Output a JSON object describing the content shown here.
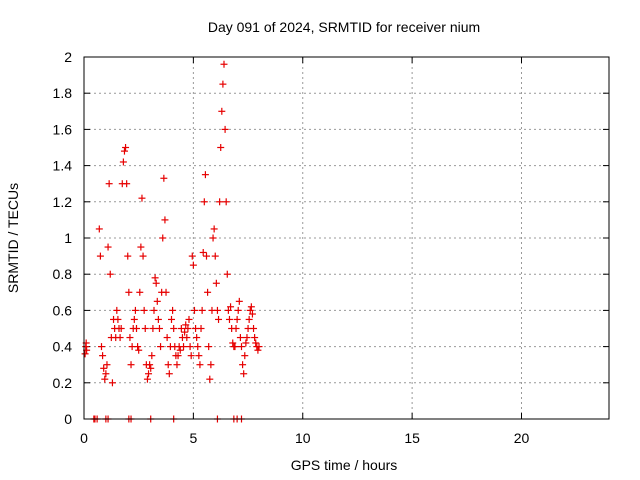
{
  "chart_data": {
    "type": "scatter",
    "title": "Day 091 of 2024, SRMTID for receiver nium",
    "xlabel": "GPS time / hours",
    "ylabel": "SRMTID / TECUs",
    "xlim": [
      0,
      24
    ],
    "ylim": [
      0,
      2
    ],
    "x_ticks": [
      0,
      5,
      10,
      15,
      20
    ],
    "y_ticks": [
      0,
      0.2,
      0.4,
      0.6,
      0.8,
      1,
      1.2,
      1.4,
      1.6,
      1.8,
      2
    ],
    "x_tick_labels": [
      "0",
      "5",
      "10",
      "15",
      "20"
    ],
    "y_tick_labels": [
      "0",
      "0.2",
      "0.4",
      "0.6",
      "0.8",
      "1",
      "1.2",
      "1.4",
      "1.6",
      "1.8",
      "2"
    ],
    "grid": true,
    "marker": "+",
    "color": "#e60000",
    "series": [
      {
        "name": "SRMTID",
        "x": [
          0.05,
          0.08,
          0.1,
          0.12,
          0.7,
          0.75,
          0.8,
          0.85,
          0.9,
          0.95,
          1.0,
          1.05,
          1.1,
          1.15,
          1.2,
          1.25,
          1.3,
          1.35,
          1.4,
          1.45,
          1.5,
          1.55,
          1.6,
          1.65,
          1.7,
          1.75,
          1.8,
          1.85,
          1.9,
          1.95,
          2.0,
          2.05,
          2.1,
          2.15,
          2.2,
          2.25,
          2.3,
          2.35,
          2.4,
          2.45,
          2.5,
          2.55,
          2.6,
          2.65,
          2.7,
          2.75,
          2.8,
          2.85,
          2.9,
          2.95,
          3.0,
          3.05,
          3.1,
          3.15,
          3.2,
          3.25,
          3.3,
          3.35,
          3.4,
          3.45,
          3.5,
          3.55,
          3.6,
          3.65,
          3.7,
          3.75,
          3.8,
          3.85,
          3.9,
          3.95,
          4.0,
          4.05,
          4.1,
          4.15,
          4.2,
          4.25,
          4.3,
          4.35,
          4.4,
          4.45,
          4.5,
          4.55,
          4.6,
          4.65,
          4.7,
          4.75,
          4.8,
          4.85,
          4.9,
          4.95,
          5.0,
          5.05,
          5.1,
          5.15,
          5.2,
          5.25,
          5.3,
          5.35,
          5.4,
          5.45,
          5.5,
          5.55,
          5.6,
          5.65,
          5.7,
          5.75,
          5.8,
          5.85,
          5.9,
          5.95,
          6.0,
          6.05,
          6.1,
          6.15,
          6.2,
          6.25,
          6.3,
          6.35,
          6.4,
          6.45,
          6.5,
          6.55,
          6.6,
          6.65,
          6.7,
          6.75,
          6.8,
          6.85,
          6.9,
          6.95,
          7.0,
          7.05,
          7.1,
          7.15,
          7.2,
          7.25,
          7.3,
          7.35,
          7.4,
          7.45,
          7.5,
          7.55,
          7.6,
          7.65,
          7.7,
          7.75,
          7.8,
          7.85,
          7.9,
          7.95,
          8.0,
          0.45,
          0.5,
          0.6,
          1.0,
          1.1,
          2.05,
          2.15,
          3.05,
          4.1,
          6.1,
          6.85,
          7.0,
          7.2
        ],
        "y": [
          0.36,
          0.4,
          0.42,
          0.38,
          1.05,
          0.9,
          0.4,
          0.35,
          0.28,
          0.22,
          0.25,
          0.3,
          0.95,
          1.3,
          0.8,
          0.45,
          0.2,
          0.55,
          0.5,
          0.45,
          0.6,
          0.55,
          0.5,
          0.45,
          0.5,
          1.3,
          1.42,
          1.48,
          1.5,
          1.3,
          0.9,
          0.7,
          0.45,
          0.3,
          0.4,
          0.5,
          0.55,
          0.6,
          0.5,
          0.4,
          0.38,
          0.7,
          0.95,
          1.22,
          0.9,
          0.6,
          0.5,
          0.3,
          0.22,
          0.25,
          0.3,
          0.28,
          0.35,
          0.5,
          0.6,
          0.78,
          0.75,
          0.65,
          0.55,
          0.5,
          0.4,
          0.7,
          1.0,
          1.33,
          1.1,
          0.7,
          0.45,
          0.3,
          0.25,
          0.4,
          0.55,
          0.6,
          0.5,
          0.4,
          0.35,
          0.3,
          0.35,
          0.4,
          0.38,
          0.5,
          0.45,
          0.4,
          0.48,
          0.52,
          0.45,
          0.5,
          0.55,
          0.4,
          0.35,
          0.9,
          0.85,
          0.6,
          0.5,
          0.45,
          0.4,
          0.35,
          0.3,
          0.5,
          0.6,
          0.92,
          1.2,
          1.35,
          0.9,
          0.7,
          0.4,
          0.22,
          0.3,
          0.6,
          1.0,
          1.05,
          0.9,
          0.75,
          0.6,
          0.55,
          1.2,
          1.5,
          1.7,
          1.85,
          1.96,
          1.6,
          1.2,
          0.8,
          0.6,
          0.55,
          0.62,
          0.5,
          0.42,
          0.4,
          0.4,
          0.5,
          0.55,
          0.6,
          0.65,
          0.45,
          0.4,
          0.3,
          0.25,
          0.35,
          0.42,
          0.45,
          0.5,
          0.55,
          0.6,
          0.62,
          0.58,
          0.5,
          0.45,
          0.42,
          0.4,
          0.38,
          0.4,
          0,
          0,
          0,
          0,
          0,
          0,
          0,
          0,
          0,
          0,
          0,
          0,
          0
        ]
      }
    ]
  }
}
